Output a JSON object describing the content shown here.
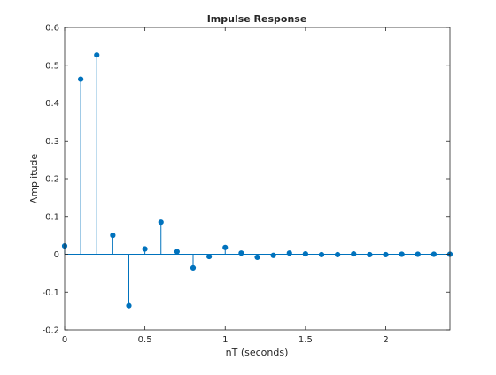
{
  "chart_data": {
    "type": "stem",
    "title": "Impulse Response",
    "xlabel": "nT (seconds)",
    "ylabel": "Amplitude",
    "xlim": [
      0,
      2.4
    ],
    "ylim": [
      -0.2,
      0.6
    ],
    "xticks": [
      0,
      0.5,
      1,
      1.5,
      2
    ],
    "xtick_labels": [
      "0",
      "0.5",
      "1",
      "1.5",
      "2"
    ],
    "yticks": [
      -0.2,
      -0.1,
      0,
      0.1,
      0.2,
      0.3,
      0.4,
      0.5,
      0.6
    ],
    "ytick_labels": [
      "-0.2",
      "-0.1",
      "0",
      "0.1",
      "0.2",
      "0.3",
      "0.4",
      "0.5",
      "0.6"
    ],
    "grid": false,
    "series": [
      {
        "color": "#0072bd",
        "x": [
          0,
          0.1,
          0.2,
          0.3,
          0.4,
          0.5,
          0.6,
          0.7,
          0.8,
          0.9,
          1.0,
          1.1,
          1.2,
          1.3,
          1.4,
          1.5,
          1.6,
          1.7,
          1.8,
          1.9,
          2.0,
          2.1,
          2.2,
          2.3,
          2.4
        ],
        "y": [
          0.022,
          0.463,
          0.527,
          0.05,
          -0.136,
          0.014,
          0.085,
          0.007,
          -0.036,
          -0.006,
          0.018,
          0.003,
          -0.008,
          -0.003,
          0.003,
          0.001,
          -0.001,
          -0.001,
          0.001,
          -0.001,
          -0.001,
          0.0,
          0.0,
          0.0,
          0.0
        ]
      }
    ]
  }
}
